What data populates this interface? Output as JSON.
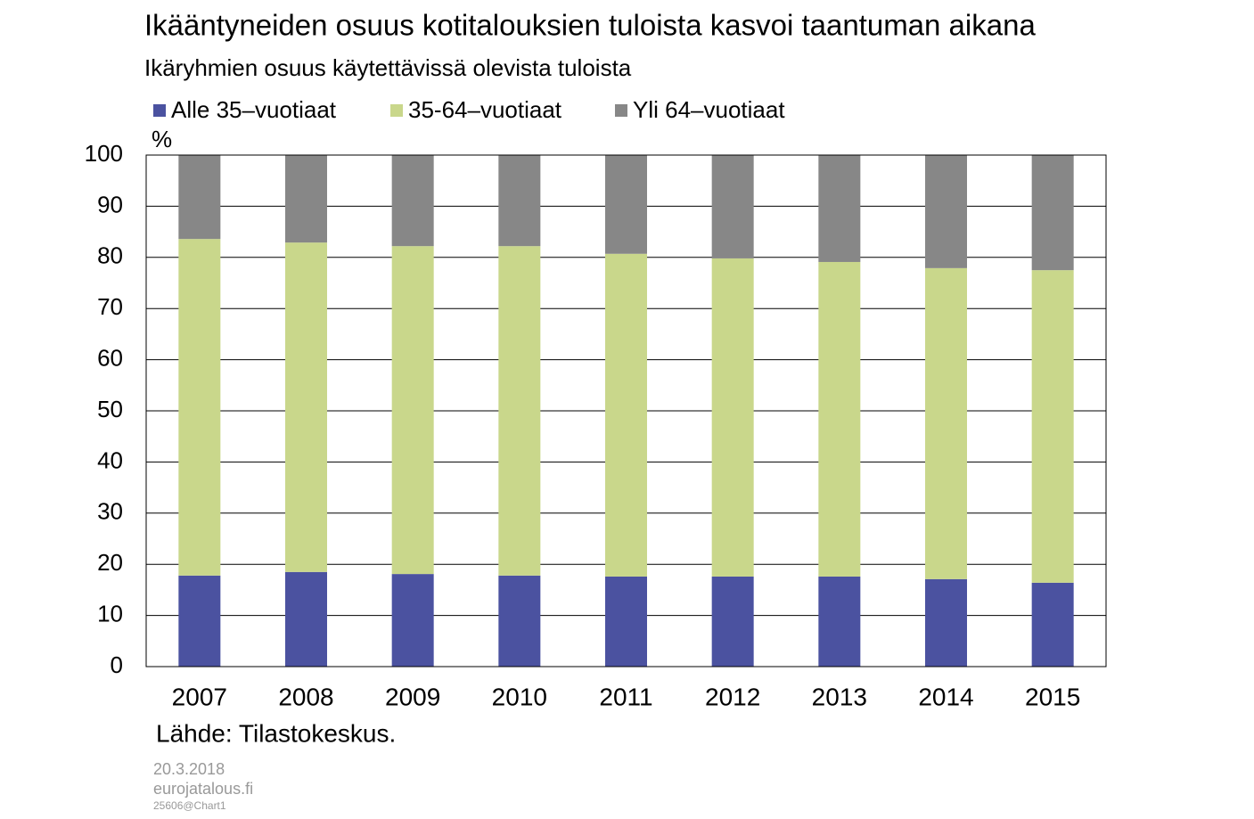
{
  "chart_data": {
    "type": "stacked-bar",
    "title": "Ikääntyneiden osuus kotitalouksien tuloista kasvoi taantuman aikana",
    "subtitle": "Ikäryhmien osuus käytettävissä olevista tuloista",
    "y_unit": "%",
    "categories": [
      "2007",
      "2008",
      "2009",
      "2010",
      "2011",
      "2012",
      "2013",
      "2014",
      "2015"
    ],
    "series": [
      {
        "name": "Alle 35–vuotiaat",
        "color": "#4b52a0",
        "values": [
          17.8,
          18.5,
          18.1,
          17.8,
          17.6,
          17.6,
          17.6,
          17.1,
          16.4
        ]
      },
      {
        "name": "35-64–vuotiaat",
        "color": "#c9d78b",
        "values": [
          65.8,
          64.4,
          64.1,
          64.4,
          63.1,
          62.2,
          61.5,
          60.8,
          61.1
        ]
      },
      {
        "name": "Yli 64–vuotiaat",
        "color": "#878787",
        "values": [
          16.4,
          17.1,
          17.8,
          17.8,
          19.3,
          20.2,
          20.9,
          22.1,
          22.5
        ]
      }
    ],
    "ylim": [
      0,
      100
    ],
    "yticks": [
      0,
      10,
      20,
      30,
      40,
      50,
      60,
      70,
      80,
      90,
      100
    ],
    "grid": true,
    "source": "Lähde: Tilastokeskus.",
    "footer": {
      "date": "20.3.2018",
      "site": "eurojatalous.fi",
      "code": "25606@Chart1"
    }
  }
}
